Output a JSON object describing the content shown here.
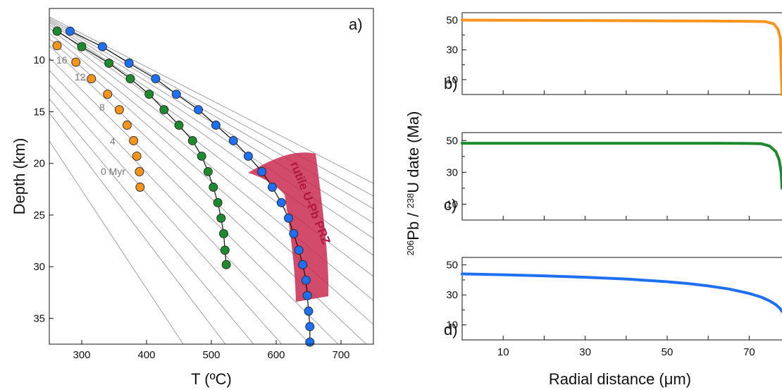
{
  "chart_data": [
    {
      "type": "scatter",
      "panel_label": "a)",
      "xlabel": "T (ºC)",
      "ylabel": "Depth (km)",
      "xlim": [
        250,
        750
      ],
      "ylim": [
        37.5,
        5
      ],
      "y_inverted": true,
      "xticks": [
        300,
        400,
        500,
        600,
        700
      ],
      "yticks": [
        10,
        15,
        20,
        25,
        30,
        35
      ],
      "isotherm_labels": [
        "16",
        "12",
        "8",
        "4",
        "0 Myr"
      ],
      "annotation": "rutile U-Pb PRZ",
      "series": [
        {
          "color": "#f7941d",
          "connected": false,
          "points": [
            [
              262,
              8.6
            ],
            [
              291,
              10.2
            ],
            [
              315,
              11.8
            ],
            [
              340,
              13.3
            ],
            [
              358,
              14.8
            ],
            [
              370,
              16.3
            ],
            [
              380,
              17.8
            ],
            [
              385,
              19.3
            ],
            [
              389,
              20.8
            ],
            [
              390,
              22.3
            ]
          ]
        },
        {
          "color": "#1e8a2e",
          "connected": true,
          "points": [
            [
              262,
              7.2
            ],
            [
              300,
              8.7
            ],
            [
              342,
              10.3
            ],
            [
              375,
              11.8
            ],
            [
              404,
              13.3
            ],
            [
              427,
              14.8
            ],
            [
              450,
              16.3
            ],
            [
              471,
              17.8
            ],
            [
              485,
              19.3
            ],
            [
              495,
              20.8
            ],
            [
              503,
              22.3
            ],
            [
              510,
              23.8
            ],
            [
              515,
              25.3
            ],
            [
              519,
              26.8
            ],
            [
              521,
              28.4
            ],
            [
              523,
              29.8
            ]
          ]
        },
        {
          "color": "#1f6ff2",
          "connected": true,
          "points": [
            [
              282,
              7.2
            ],
            [
              332,
              8.7
            ],
            [
              373,
              10.3
            ],
            [
              414,
              11.8
            ],
            [
              446,
              13.3
            ],
            [
              480,
              14.8
            ],
            [
              507,
              16.3
            ],
            [
              534,
              17.8
            ],
            [
              557,
              19.3
            ],
            [
              578,
              20.8
            ],
            [
              594,
              22.3
            ],
            [
              608,
              23.8
            ],
            [
              619,
              25.3
            ],
            [
              627,
              26.8
            ],
            [
              635,
              28.4
            ],
            [
              641,
              29.8
            ],
            [
              646,
              31.3
            ],
            [
              648,
              32.8
            ],
            [
              650,
              34.3
            ],
            [
              652,
              35.8
            ],
            [
              652,
              37.3
            ]
          ]
        }
      ]
    },
    {
      "type": "line",
      "panel_label": "b)",
      "color": "#f7941d",
      "xlim": [
        0,
        78
      ],
      "ylim": [
        0,
        55
      ],
      "yticks": [
        10,
        30,
        50
      ],
      "x": [
        0,
        10,
        20,
        30,
        40,
        50,
        60,
        70,
        74,
        76,
        77,
        77.6,
        78
      ],
      "values": [
        50,
        49.9,
        49.8,
        49.7,
        49.6,
        49.5,
        49.4,
        49.2,
        49,
        47.5,
        44,
        38,
        0
      ]
    },
    {
      "type": "line",
      "panel_label": "c)",
      "color": "#1e8a2e",
      "xlim": [
        0,
        78
      ],
      "ylim": [
        0,
        55
      ],
      "yticks": [
        10,
        30,
        50
      ],
      "x": [
        0,
        10,
        20,
        30,
        40,
        50,
        60,
        70,
        73,
        75,
        76.5,
        77.3,
        77.8,
        78
      ],
      "values": [
        48.3,
        48.3,
        48.3,
        48.3,
        48.3,
        48.3,
        48.3,
        48.2,
        48,
        46.5,
        43,
        38,
        30,
        20
      ]
    },
    {
      "type": "line",
      "panel_label": "d)",
      "color": "#1f6ff2",
      "xlim": [
        0,
        78
      ],
      "ylim": [
        0,
        55
      ],
      "yticks": [
        10,
        30,
        50
      ],
      "xticks": [
        10,
        30,
        50,
        70
      ],
      "xlabel": "Radial distance (μm)",
      "ylabel": "206Pb / 238U date (Ma)",
      "x": [
        0,
        10,
        20,
        30,
        40,
        50,
        55,
        60,
        65,
        70,
        73,
        75,
        76.5,
        77.5,
        78
      ],
      "values": [
        44,
        43.4,
        42.7,
        41.8,
        40.6,
        38.8,
        37.6,
        36,
        34,
        31,
        28.5,
        26,
        23.5,
        21,
        19
      ]
    }
  ]
}
